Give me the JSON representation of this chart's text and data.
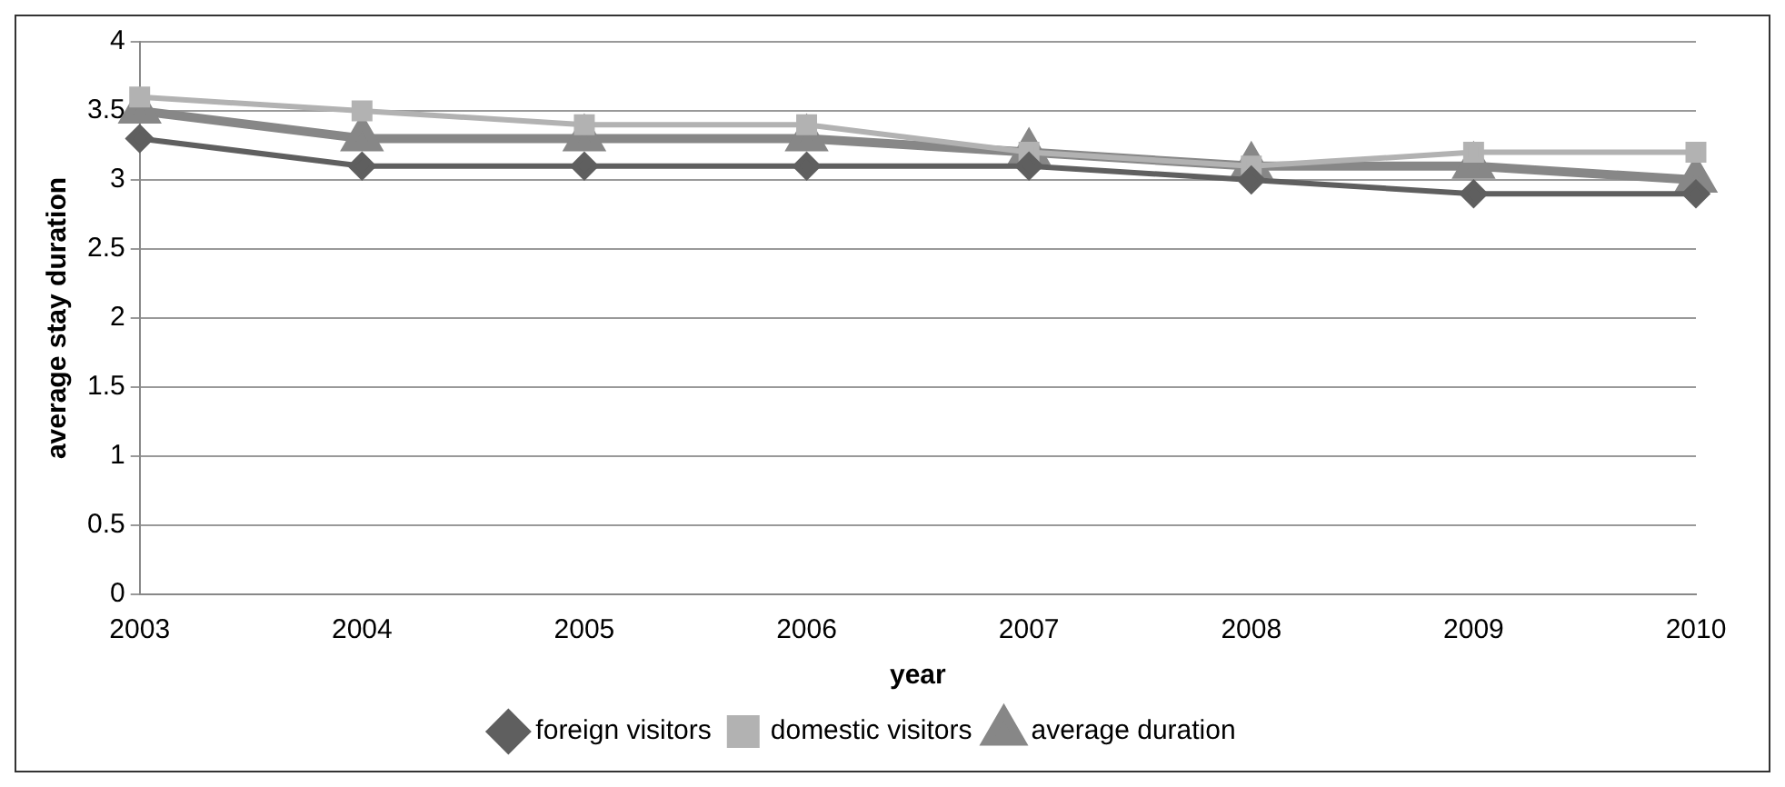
{
  "chart_data": {
    "type": "line",
    "xlabel": "year",
    "ylabel": "average stay duration",
    "categories": [
      "2003",
      "2004",
      "2005",
      "2006",
      "2007",
      "2008",
      "2009",
      "2010"
    ],
    "series": [
      {
        "name": "foreign visitors",
        "color": "#5f5f5f",
        "marker": "diamond",
        "values": [
          3.3,
          3.1,
          3.1,
          3.1,
          3.1,
          3.0,
          2.9,
          2.9
        ]
      },
      {
        "name": "domestic visitors",
        "color": "#b2b2b2",
        "marker": "square",
        "values": [
          3.6,
          3.5,
          3.4,
          3.4,
          3.2,
          3.1,
          3.2,
          3.2
        ]
      },
      {
        "name": "average duration",
        "color": "#878787",
        "marker": "triangle",
        "values": [
          3.5,
          3.3,
          3.3,
          3.3,
          3.2,
          3.1,
          3.1,
          3.0
        ]
      }
    ],
    "ylim": [
      0,
      4
    ],
    "yticks": [
      0,
      0.5,
      1,
      1.5,
      2,
      2.5,
      3,
      3.5,
      4
    ],
    "grid": "y",
    "legend": "bottom",
    "line_style": "solid"
  }
}
